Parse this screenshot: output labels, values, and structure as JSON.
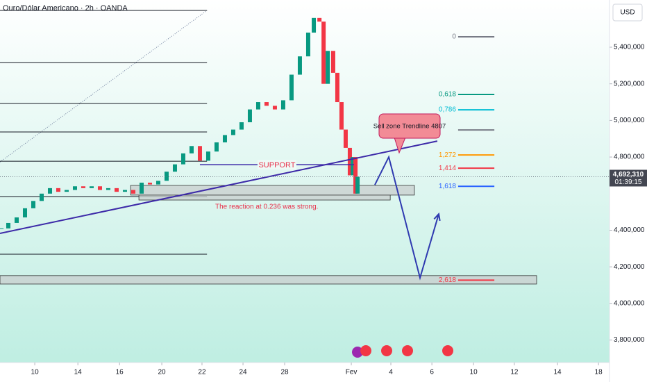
{
  "chart_data": {
    "type": "candlestick",
    "title": "Ouro/Dólar Americano · 2h · OANDA",
    "currency": "USD",
    "up_color": "#089981",
    "down_color": "#f23645",
    "x": [
      -1.6,
      -1.27,
      -0.87,
      -0.47,
      -0.07,
      0.33,
      0.73,
      1.13,
      1.53,
      1.93,
      2.33,
      2.73,
      3.13,
      3.53,
      3.93,
      4.33,
      4.73,
      5.13,
      5.53,
      5.93,
      6.33,
      6.73,
      7.13,
      7.53,
      7.93,
      8.33,
      8.73,
      9.13,
      9.53,
      9.93,
      10.33,
      10.73,
      11.13,
      11.53,
      11.93,
      12.33,
      12.73,
      13.13,
      13.4,
      13.67,
      13.87,
      14.07,
      14.33,
      14.53,
      14.73,
      14.93,
      15.13,
      15.27,
      15.4,
      15.5
    ],
    "values": [
      4410000,
      4440000,
      4470000,
      4520000,
      4560000,
      4600000,
      4630000,
      4610000,
      4620000,
      4640000,
      4630000,
      4640000,
      4620000,
      4630000,
      4610000,
      4620000,
      4600000,
      4660000,
      4650000,
      4670000,
      4720000,
      4760000,
      4820000,
      4860000,
      4780000,
      4830000,
      4880000,
      4920000,
      4950000,
      4990000,
      5060000,
      5100000,
      5080000,
      5060000,
      5110000,
      5250000,
      5350000,
      5480000,
      5560000,
      5540000,
      5200000,
      5380000,
      5260000,
      5100000,
      4950000,
      4850000,
      4700000,
      4800000,
      4600000,
      4692310
    ],
    "xlim": [
      -1.67,
      27.6
    ],
    "xticks": [
      {
        "value": 0,
        "label": "10"
      },
      {
        "value": 2.07,
        "label": "14"
      },
      {
        "value": 4.07,
        "label": "16"
      },
      {
        "value": 6.1,
        "label": "20"
      },
      {
        "value": 8.03,
        "label": "22"
      },
      {
        "value": 10,
        "label": "24"
      },
      {
        "value": 12,
        "label": "28"
      },
      {
        "value": 15.2,
        "label": "Fev"
      },
      {
        "value": 17.1,
        "label": "4"
      },
      {
        "value": 19.07,
        "label": "6"
      },
      {
        "value": 21.07,
        "label": "10"
      },
      {
        "value": 23.03,
        "label": "12"
      },
      {
        "value": 25.1,
        "label": "14"
      },
      {
        "value": 27.07,
        "label": "18"
      }
    ],
    "ylim": [
      3677000,
      5658000
    ],
    "yticks": [
      {
        "value": 3800000,
        "label": "3,800,000"
      },
      {
        "value": 4000000,
        "label": "4,000,000"
      },
      {
        "value": 4200000,
        "label": "4,200,000"
      },
      {
        "value": 4400000,
        "label": "4,400,000"
      },
      {
        "value": 4800000,
        "label": "4,800,000"
      },
      {
        "value": 5000000,
        "label": "5,000,000"
      },
      {
        "value": 5200000,
        "label": "5,200,000"
      },
      {
        "value": 5400000,
        "label": "5,400,000"
      }
    ],
    "last_price": {
      "value": 4692310,
      "label": "4,692,310"
    },
    "countdown": "01:39:15",
    "levels": {
      "x": [
        -1.67,
        8.27
      ],
      "prices": [
        5601000,
        5316000,
        5093000,
        4937000,
        4777000,
        4584000,
        4269000
      ]
    },
    "zones": [
      {
        "x": [
          4.6,
          18.23
        ],
        "y": [
          4592000,
          4645000
        ]
      },
      {
        "x": [
          5.0,
          17.07
        ],
        "y": [
          4565000,
          4592000
        ]
      },
      {
        "x": [
          -1.67,
          24.1
        ],
        "y": [
          4106000,
          4152000
        ]
      }
    ],
    "trendline": {
      "x": [
        -1.67,
        19.33
      ],
      "y": [
        4383000,
        4887000
      ],
      "color": "#3d2aa8"
    },
    "guide_line": {
      "x": [
        -1.67,
        8.27
      ],
      "y": [
        4773000,
        5601000
      ]
    },
    "support": {
      "label": "SUPPORT",
      "x": [
        7.93,
        15.33
      ],
      "y": 4758000
    },
    "projection": {
      "x": [
        16.33,
        17.0,
        18.5,
        19.4
      ],
      "y": [
        4648000,
        4800000,
        4140000,
        4489000
      ],
      "color": "#2f3ab0"
    },
    "annotation": "The reaction at 0.236 was strong.",
    "callout": "Sell zone Trendline 4807",
    "fib_x": [
      20.33,
      22.07
    ],
    "fib_levels": [
      {
        "label": "0",
        "price": 5457000,
        "color": "#787b86"
      },
      {
        "label": "0,618",
        "price": 5142000,
        "color": "#089981"
      },
      {
        "label": "0,786",
        "price": 5058000,
        "color": "#00bcd4"
      },
      {
        "label": null,
        "price": 4948000,
        "color": "#787b86"
      },
      {
        "label": "1,272",
        "price": 4811000,
        "color": "#ff9800"
      },
      {
        "label": "1,414",
        "price": 4739000,
        "color": "#f23645"
      },
      {
        "label": "1,618",
        "price": 4640000,
        "color": "#2962ff"
      },
      {
        "label": "2,618",
        "price": 4127000,
        "color": "#f23645"
      }
    ]
  }
}
